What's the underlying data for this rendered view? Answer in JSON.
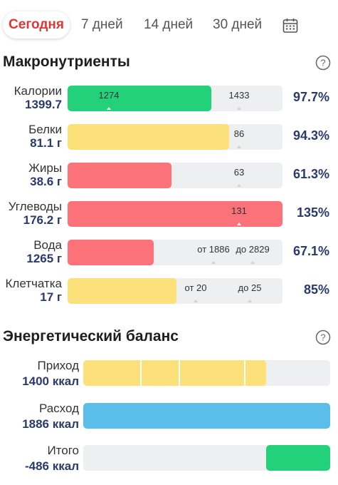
{
  "tabs": {
    "today": "Сегодня",
    "days7": "7 дней",
    "days14": "14 дней",
    "days30": "30 дней"
  },
  "macros": {
    "title": "Макронутриенты",
    "rows": [
      {
        "name": "Калории",
        "value": "1399.7",
        "percent": "97.7%",
        "fill_fraction": 0.67,
        "color": "#22d17a",
        "marker_a": "1274",
        "marker_b": "1433"
      },
      {
        "name": "Белки",
        "value": "81.1 г",
        "percent": "94.3%",
        "fill_fraction": 0.75,
        "color": "#fce07a",
        "marker_a": "",
        "marker_b": "86"
      },
      {
        "name": "Жиры",
        "value": "38.6 г",
        "percent": "61.3%",
        "fill_fraction": 0.485,
        "color": "#fb7378",
        "marker_a": "",
        "marker_b": "63"
      },
      {
        "name": "Углеводы",
        "value": "176.2 г",
        "percent": "135%",
        "fill_fraction": 1.0,
        "color": "#fb7378",
        "marker_a": "",
        "marker_b": "131"
      },
      {
        "name": "Вода",
        "value": "1265 г",
        "percent": "67.1%",
        "fill_fraction": 0.4,
        "color": "#fb7378",
        "marker_a": "от 1886",
        "marker_b": "до 2829"
      },
      {
        "name": "Клетчатка",
        "value": "17 г",
        "percent": "85%",
        "fill_fraction": 0.507,
        "color": "#fce07a",
        "marker_a": "от 20",
        "marker_b": "до 25"
      }
    ]
  },
  "energy": {
    "title": "Энергетический баланс",
    "rows": [
      {
        "name": "Приход",
        "value": "1400 ккал",
        "fill_fraction": 0.74,
        "color": "#fce07a"
      },
      {
        "name": "Расход",
        "value": "1886 ккал",
        "fill_fraction": 1.0,
        "color": "#5bbde9"
      },
      {
        "name": "Итого",
        "value": "-486 ккал",
        "fill_fraction": 0.258,
        "color": "#22d17a"
      }
    ]
  },
  "colors": {
    "accent": "#e03636",
    "value_text": "#2a3a6a",
    "track": "#eeeff1"
  },
  "icons": {
    "calendar": "calendar-icon",
    "help": "help-circle-icon"
  }
}
